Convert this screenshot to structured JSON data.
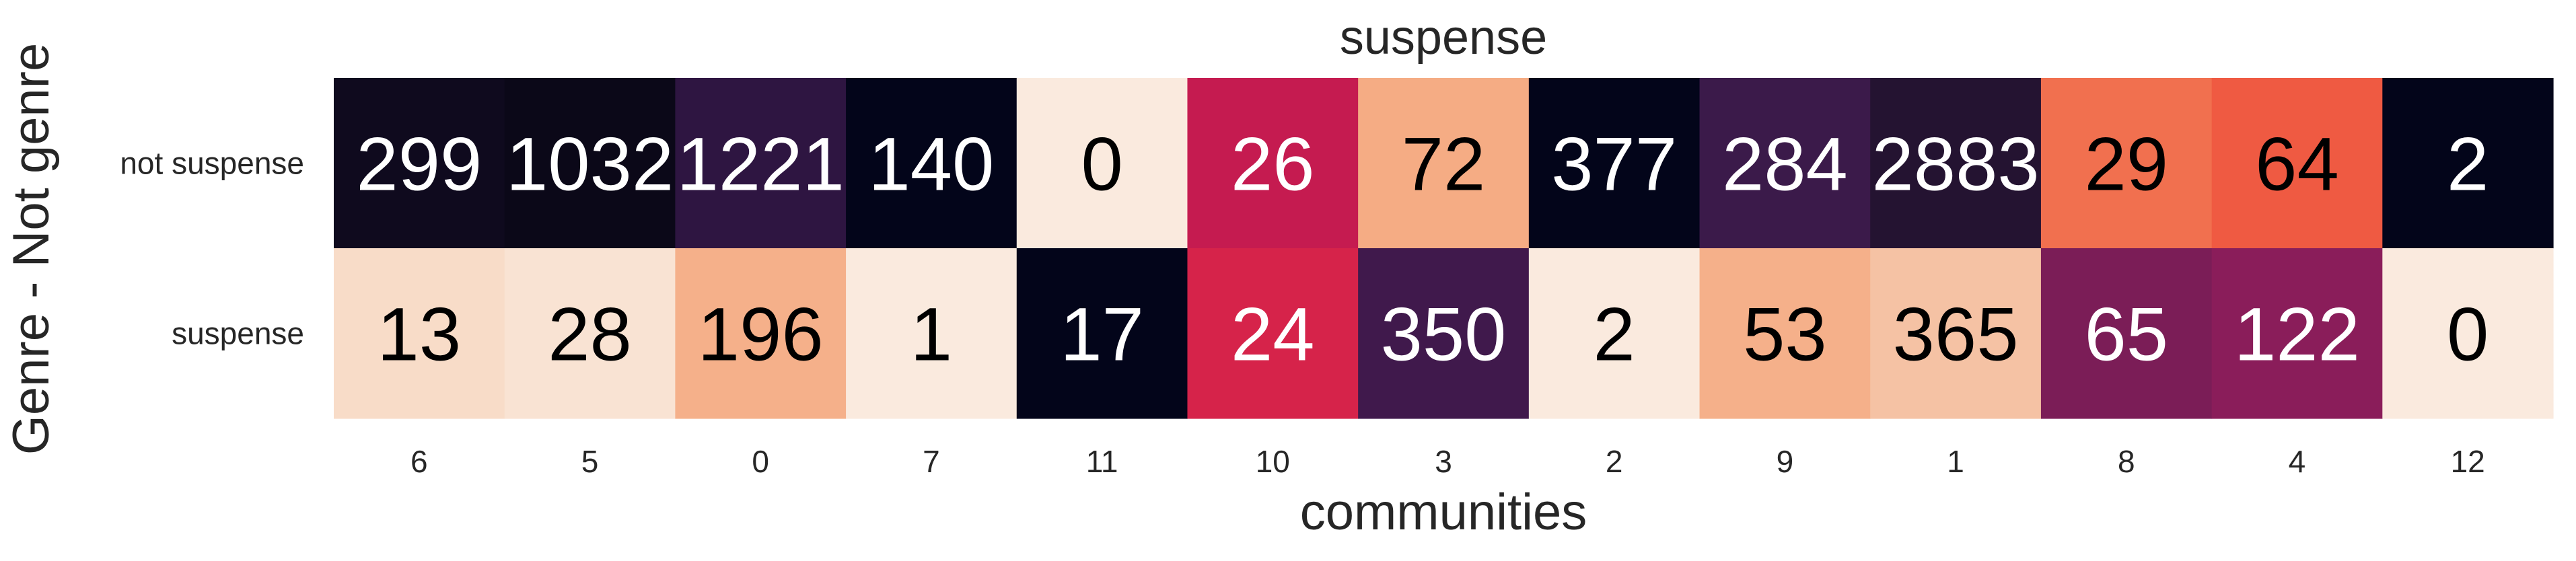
{
  "chart_data": {
    "type": "heatmap",
    "title": "suspense",
    "xlabel": "communities",
    "ylabel": "Genre - Not genre",
    "x_categories": [
      "6",
      "5",
      "0",
      "7",
      "11",
      "10",
      "3",
      "2",
      "9",
      "1",
      "8",
      "4",
      "12"
    ],
    "y_categories": [
      "not suspense",
      "suspense"
    ],
    "values": [
      [
        299,
        1032,
        1221,
        140,
        0,
        26,
        72,
        377,
        284,
        2883,
        29,
        64,
        2
      ],
      [
        13,
        28,
        196,
        1,
        17,
        24,
        350,
        2,
        53,
        365,
        65,
        122,
        0
      ]
    ],
    "cell_colors": [
      [
        "#0f0a1e",
        "#0b0818",
        "#2e1541",
        "#03051a",
        "#faeade",
        "#c51b50",
        "#f5ac84",
        "#03051a",
        "#3b1a4a",
        "#241331",
        "#f1704f",
        "#ef5a42",
        "#03051a"
      ],
      [
        "#f8dcc8",
        "#f9e3d3",
        "#f5b08a",
        "#faeade",
        "#03051a",
        "#d6234a",
        "#40194c",
        "#faeade",
        "#f5b08a",
        "#f5c2a4",
        "#7b1d57",
        "#8a1d5a",
        "#faeade"
      ]
    ],
    "grid": false,
    "colorbar": false
  }
}
